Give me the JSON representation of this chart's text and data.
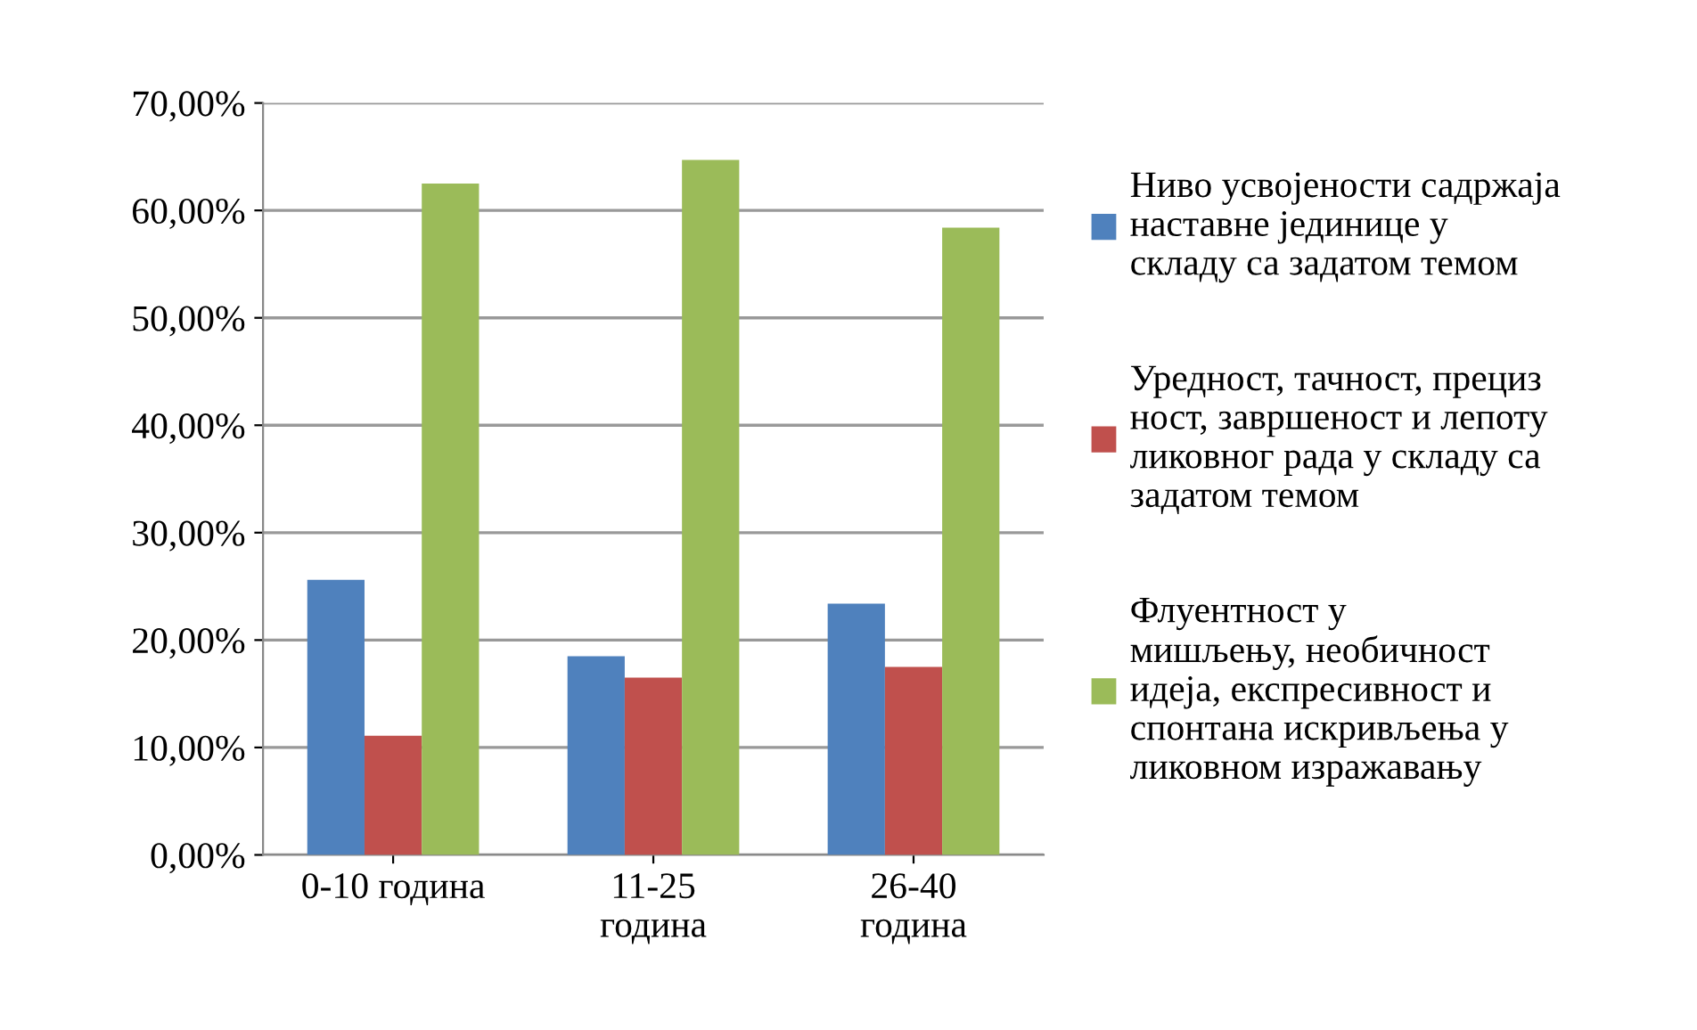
{
  "chart_data": {
    "type": "bar",
    "categories": [
      "0-10 година",
      "11-25\nгодина",
      "26-40\nгодина"
    ],
    "series": [
      {
        "name": "Ниво усвојености садржаја\nнаставне јединице у\nскладу са задатом темом",
        "color": "#4f81bd",
        "values": [
          25.6,
          18.5,
          23.4
        ]
      },
      {
        "name": "Уредност, тачност, прециз\nност, завршеност и лепоту\nликовног рада у складу са\nзадатом темом",
        "color": "#c0504d",
        "values": [
          11.1,
          16.5,
          17.5
        ]
      },
      {
        "name": "Флуентност у\nмишљењу, необичност\nидеја, експресивност и\nспонтана искривљења у\nликовном изражавању",
        "color": "#9bbb59",
        "values": [
          62.5,
          64.7,
          58.4
        ]
      }
    ],
    "ylim": [
      0,
      70
    ],
    "yticks": [
      {
        "value": 0,
        "label": "0,00%"
      },
      {
        "value": 10,
        "label": "10,00%"
      },
      {
        "value": 20,
        "label": "20,00%"
      },
      {
        "value": 30,
        "label": "30,00%"
      },
      {
        "value": 40,
        "label": "40,00%"
      },
      {
        "value": 50,
        "label": "50,00%"
      },
      {
        "value": 60,
        "label": "60,00%"
      },
      {
        "value": 70,
        "label": "70,00%"
      }
    ],
    "grid": "y",
    "legend": "right"
  }
}
